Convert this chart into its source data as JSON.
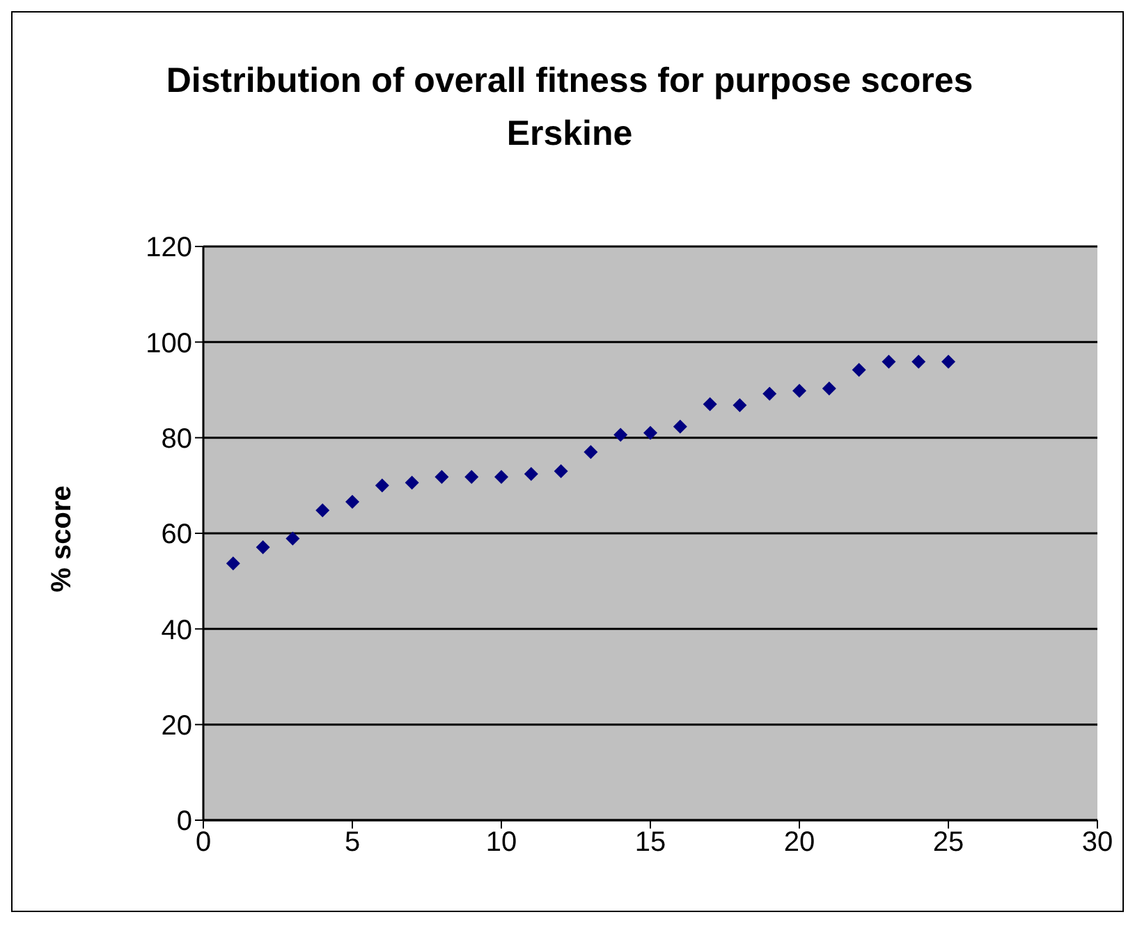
{
  "chart_data": {
    "type": "scatter",
    "title": "Distribution of overall fitness for purpose scores Erskine",
    "ylabel": "% score",
    "x": [
      1,
      2,
      3,
      4,
      5,
      6,
      7,
      8,
      9,
      10,
      11,
      12,
      13,
      14,
      15,
      16,
      17,
      18,
      19,
      20,
      21,
      22,
      23,
      24,
      25
    ],
    "series": [
      {
        "color": "#000080",
        "values": [
          53.7,
          57.1,
          58.9,
          64.8,
          66.6,
          70.0,
          70.6,
          71.8,
          71.8,
          71.8,
          72.4,
          73.0,
          77.0,
          80.6,
          81.0,
          82.3,
          87.0,
          86.8,
          89.2,
          89.8,
          90.3,
          94.2,
          95.9,
          95.9,
          95.9
        ]
      }
    ],
    "xlim": [
      0,
      30
    ],
    "xticks": [
      0,
      5,
      10,
      15,
      20,
      25,
      30
    ],
    "ylim": [
      0,
      120
    ],
    "yticks": [
      0,
      20,
      40,
      60,
      80,
      100,
      120
    ],
    "grid": "y",
    "marker": "diamond",
    "legend": false
  }
}
